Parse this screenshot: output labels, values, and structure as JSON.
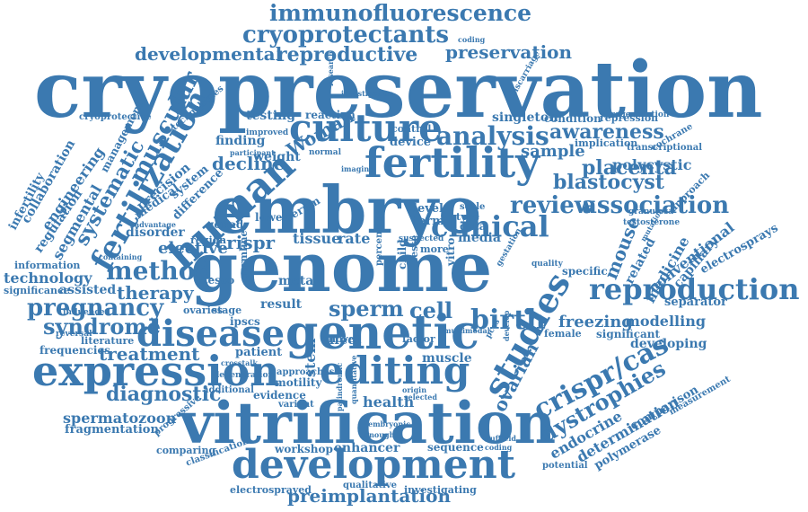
{
  "cloud": {
    "color": "#3b79b0",
    "words": [
      "immunofluorescence",
      "cryoprotectants",
      "developmental",
      "reproductive",
      "preservation",
      "cryopreservation",
      "culture",
      "fertility",
      "analysis",
      "awareness",
      "human",
      "embryo",
      "review",
      "association",
      "clinical",
      "fertilization",
      "genome",
      "method",
      "pregnancy",
      "disease",
      "genetic",
      "sperm",
      "cell",
      "birth",
      "studies",
      "reproduction",
      "expression",
      "editing",
      "crispr/cas",
      "vitrification",
      "development",
      "preimplantation",
      "spermatozoon",
      "diagnostic",
      "treatment",
      "dystrophies",
      "ovarian",
      "freezing",
      "placenta",
      "blastocyst",
      "polycystic",
      "syndrome",
      "therapy",
      "crispr",
      "decline",
      "finding",
      "testing",
      "singleton",
      "muscular",
      "systematic",
      "engineering",
      "regulation",
      "segmental",
      "collaboration",
      "technology",
      "information",
      "significance",
      "assisted",
      "elective",
      "disorder",
      "ovaries",
      "frequencies",
      "literature",
      "fragmentation",
      "workshop",
      "enhancer",
      "sequence",
      "health",
      "evidence",
      "motility",
      "muscle",
      "novel",
      "factor",
      "tissue",
      "rate",
      "media",
      "data",
      "type",
      "scale",
      "level",
      "term",
      "endocrine",
      "determination",
      "polymerase",
      "comparison",
      "measurement",
      "electrosprays",
      "conventional",
      "capillary",
      "medicine",
      "related",
      "mouse",
      "specific",
      "developing",
      "significant",
      "modelling",
      "separator",
      "study",
      "sample",
      "condition",
      "regeneration",
      "repression",
      "transcriptional",
      "implication",
      "approach",
      "granulosa",
      "testosterone",
      "mutation",
      "cochrane",
      "electrosprayed",
      "investigating",
      "comparing",
      "classification",
      "progressive",
      "qualitative",
      "potential",
      "additional",
      "approaches",
      "degeneration",
      "variant",
      "stem",
      "result",
      "stage",
      "gonad",
      "region",
      "meta",
      "effect",
      "patient",
      "ipscs",
      "tesco",
      "germline",
      "lower",
      "serum",
      "Woman",
      "weight",
      "device",
      "control",
      "reaction",
      "improved",
      "precision",
      "system",
      "advantage",
      "containing",
      "medical",
      "difference",
      "reversal",
      "influenced",
      "cryoprotective",
      "management",
      "infertility",
      "technologies",
      "research",
      "investigation",
      "miscarriage",
      "quantitative",
      "embryonic",
      "coding",
      "gestation",
      "selected",
      "multimodal",
      "female",
      "quality",
      "pcos",
      "vitro",
      "child",
      "teste",
      "more",
      "suspected",
      "percentage",
      "palindromic",
      "enough",
      "nuffield",
      "crosstalk",
      "origin",
      "develop",
      "normal",
      "participant",
      "imaging"
    ]
  }
}
